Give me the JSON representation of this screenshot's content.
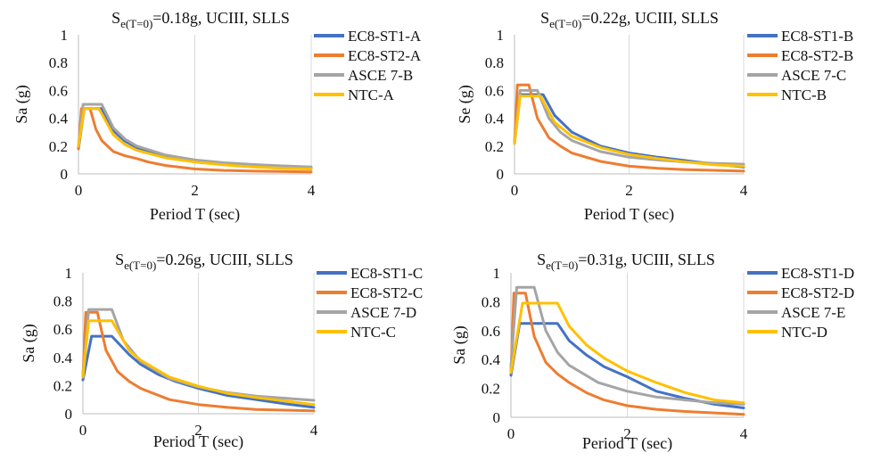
{
  "chart_data": [
    {
      "type": "line",
      "title": {
        "prefix": "S",
        "subscript": "e(T=0)",
        "rest": "=0.18g, UCIII, SLLS"
      },
      "xlabel": "Period T (sec)",
      "ylabel": "Sa (g)",
      "xlim": [
        0,
        4
      ],
      "ylim": [
        0,
        1
      ],
      "xticks": [
        "0",
        "2",
        "4"
      ],
      "yticks": [
        "0",
        "0.2",
        "0.4",
        "0.6",
        "0.8",
        "1"
      ],
      "grid": "vertical",
      "legend_position": "right",
      "series": [
        {
          "name": "EC8-ST1-A",
          "color": "#4472C4",
          "points": [
            [
              0,
              0.18
            ],
            [
              0.1,
              0.47
            ],
            [
              0.2,
              0.47
            ],
            [
              0.3,
              0.47
            ],
            [
              0.4,
              0.47
            ],
            [
              0.6,
              0.31
            ],
            [
              0.8,
              0.235
            ],
            [
              1.0,
              0.19
            ],
            [
              1.2,
              0.16
            ],
            [
              1.5,
              0.125
            ],
            [
              2.0,
              0.095
            ],
            [
              2.5,
              0.07
            ],
            [
              3.0,
              0.055
            ],
            [
              3.5,
              0.045
            ],
            [
              4.0,
              0.04
            ]
          ]
        },
        {
          "name": "EC8-ST2-A",
          "color": "#ED7D31",
          "points": [
            [
              0,
              0.18
            ],
            [
              0.05,
              0.47
            ],
            [
              0.2,
              0.47
            ],
            [
              0.3,
              0.32
            ],
            [
              0.4,
              0.24
            ],
            [
              0.6,
              0.16
            ],
            [
              0.8,
              0.13
            ],
            [
              1.0,
              0.11
            ],
            [
              1.2,
              0.085
            ],
            [
              1.5,
              0.06
            ],
            [
              2.0,
              0.035
            ],
            [
              2.5,
              0.025
            ],
            [
              3.0,
              0.02
            ],
            [
              4.0,
              0.015
            ]
          ]
        },
        {
          "name": "ASCE 7-B",
          "color": "#A5A5A5",
          "points": [
            [
              0,
              0.2
            ],
            [
              0.08,
              0.5
            ],
            [
              0.4,
              0.5
            ],
            [
              0.6,
              0.33
            ],
            [
              0.8,
              0.25
            ],
            [
              1.0,
              0.2
            ],
            [
              1.5,
              0.135
            ],
            [
              2.0,
              0.1
            ],
            [
              2.5,
              0.08
            ],
            [
              3.0,
              0.067
            ],
            [
              3.5,
              0.058
            ],
            [
              4.0,
              0.05
            ]
          ]
        },
        {
          "name": "NTC-A",
          "color": "#FFC000",
          "points": [
            [
              0,
              0.2
            ],
            [
              0.1,
              0.47
            ],
            [
              0.35,
              0.47
            ],
            [
              0.6,
              0.28
            ],
            [
              0.8,
              0.21
            ],
            [
              1.0,
              0.17
            ],
            [
              1.5,
              0.115
            ],
            [
              2.0,
              0.085
            ],
            [
              2.5,
              0.065
            ],
            [
              3.0,
              0.05
            ],
            [
              3.5,
              0.04
            ],
            [
              4.0,
              0.035
            ]
          ]
        }
      ]
    },
    {
      "type": "line",
      "title": {
        "prefix": "S",
        "subscript": "e(T=0)",
        "rest": "=0.22g, UCIII, SLLS"
      },
      "xlabel": "Period T (sec)",
      "ylabel": "Se (g)",
      "xlim": [
        0,
        4
      ],
      "ylim": [
        0,
        1
      ],
      "xticks": [
        "0",
        "2",
        "4"
      ],
      "yticks": [
        "0",
        "0.2",
        "0.4",
        "0.6",
        "0.8",
        "1"
      ],
      "grid": "vertical",
      "legend_position": "right",
      "series": [
        {
          "name": "EC8-ST1-B",
          "color": "#4472C4",
          "points": [
            [
              0,
              0.22
            ],
            [
              0.1,
              0.57
            ],
            [
              0.5,
              0.57
            ],
            [
              0.7,
              0.42
            ],
            [
              1.0,
              0.3
            ],
            [
              1.5,
              0.2
            ],
            [
              2.0,
              0.15
            ],
            [
              2.5,
              0.12
            ],
            [
              3.0,
              0.095
            ],
            [
              3.5,
              0.07
            ],
            [
              4.0,
              0.05
            ]
          ]
        },
        {
          "name": "EC8-ST2-B",
          "color": "#ED7D31",
          "points": [
            [
              0,
              0.22
            ],
            [
              0.05,
              0.64
            ],
            [
              0.25,
              0.64
            ],
            [
              0.4,
              0.4
            ],
            [
              0.6,
              0.26
            ],
            [
              0.8,
              0.2
            ],
            [
              1.0,
              0.15
            ],
            [
              1.5,
              0.09
            ],
            [
              2.0,
              0.055
            ],
            [
              2.5,
              0.04
            ],
            [
              3.0,
              0.03
            ],
            [
              4.0,
              0.02
            ]
          ]
        },
        {
          "name": "ASCE 7-C",
          "color": "#A5A5A5",
          "points": [
            [
              0,
              0.24
            ],
            [
              0.1,
              0.6
            ],
            [
              0.4,
              0.6
            ],
            [
              0.6,
              0.4
            ],
            [
              0.8,
              0.3
            ],
            [
              1.0,
              0.24
            ],
            [
              1.5,
              0.16
            ],
            [
              2.0,
              0.12
            ],
            [
              2.5,
              0.1
            ],
            [
              3.0,
              0.085
            ],
            [
              3.5,
              0.075
            ],
            [
              4.0,
              0.07
            ]
          ]
        },
        {
          "name": "NTC-B",
          "color": "#FFC000",
          "points": [
            [
              0,
              0.22
            ],
            [
              0.1,
              0.56
            ],
            [
              0.45,
              0.56
            ],
            [
              0.7,
              0.37
            ],
            [
              1.0,
              0.27
            ],
            [
              1.5,
              0.19
            ],
            [
              2.0,
              0.14
            ],
            [
              2.5,
              0.11
            ],
            [
              3.0,
              0.085
            ],
            [
              3.5,
              0.065
            ],
            [
              4.0,
              0.055
            ]
          ]
        }
      ]
    },
    {
      "type": "line",
      "title": {
        "prefix": "S",
        "subscript": "e(T=0)",
        "rest": "=0.26g, UCIII, SLLS"
      },
      "xlabel": "Period T (sec)",
      "ylabel": "Sa (g)",
      "xlim": [
        0,
        4
      ],
      "ylim": [
        0,
        1
      ],
      "xticks": [
        "0",
        "2",
        "4"
      ],
      "yticks": [
        "0",
        "0.2",
        "0.4",
        "0.6",
        "0.8",
        "1"
      ],
      "grid": "vertical",
      "legend_position": "right",
      "series": [
        {
          "name": "EC8-ST1-C",
          "color": "#4472C4",
          "points": [
            [
              0,
              0.24
            ],
            [
              0.15,
              0.55
            ],
            [
              0.5,
              0.55
            ],
            [
              0.8,
              0.42
            ],
            [
              1.0,
              0.35
            ],
            [
              1.3,
              0.28
            ],
            [
              1.6,
              0.23
            ],
            [
              2.0,
              0.18
            ],
            [
              2.5,
              0.13
            ],
            [
              3.0,
              0.1
            ],
            [
              3.5,
              0.07
            ],
            [
              4.0,
              0.045
            ]
          ]
        },
        {
          "name": "EC8-ST2-C",
          "color": "#ED7D31",
          "points": [
            [
              0,
              0.26
            ],
            [
              0.05,
              0.72
            ],
            [
              0.25,
              0.72
            ],
            [
              0.4,
              0.45
            ],
            [
              0.6,
              0.3
            ],
            [
              0.8,
              0.23
            ],
            [
              1.0,
              0.18
            ],
            [
              1.5,
              0.1
            ],
            [
              2.0,
              0.065
            ],
            [
              2.5,
              0.045
            ],
            [
              3.0,
              0.03
            ],
            [
              4.0,
              0.02
            ]
          ]
        },
        {
          "name": "ASCE 7-D",
          "color": "#A5A5A5",
          "points": [
            [
              0,
              0.28
            ],
            [
              0.1,
              0.74
            ],
            [
              0.5,
              0.74
            ],
            [
              0.7,
              0.52
            ],
            [
              1.0,
              0.37
            ],
            [
              1.5,
              0.25
            ],
            [
              2.0,
              0.19
            ],
            [
              2.5,
              0.15
            ],
            [
              3.0,
              0.125
            ],
            [
              3.5,
              0.11
            ],
            [
              4.0,
              0.095
            ]
          ]
        },
        {
          "name": "NTC-C",
          "color": "#FFC000",
          "points": [
            [
              0,
              0.26
            ],
            [
              0.1,
              0.66
            ],
            [
              0.5,
              0.66
            ],
            [
              0.8,
              0.45
            ],
            [
              1.0,
              0.38
            ],
            [
              1.5,
              0.26
            ],
            [
              2.0,
              0.195
            ],
            [
              2.5,
              0.145
            ],
            [
              3.0,
              0.115
            ],
            [
              3.5,
              0.09
            ],
            [
              4.0,
              0.065
            ]
          ]
        }
      ]
    },
    {
      "type": "line",
      "title": {
        "prefix": "S",
        "subscript": "e(T=0)",
        "rest": "=0.31g, UCIII, SLLS"
      },
      "xlabel": "Period T (sec)",
      "ylabel": "Sa (g)",
      "xlim": [
        0,
        4
      ],
      "ylim": [
        0,
        1
      ],
      "xticks": [
        "0",
        "2",
        "4"
      ],
      "yticks": [
        "0",
        "0.2",
        "0.4",
        "0.6",
        "0.8",
        "1"
      ],
      "grid": "vertical",
      "legend_position": "right",
      "series": [
        {
          "name": "EC8-ST1-D",
          "color": "#4472C4",
          "points": [
            [
              0,
              0.29
            ],
            [
              0.15,
              0.65
            ],
            [
              0.8,
              0.65
            ],
            [
              1.0,
              0.53
            ],
            [
              1.3,
              0.43
            ],
            [
              1.6,
              0.35
            ],
            [
              2.0,
              0.28
            ],
            [
              2.5,
              0.18
            ],
            [
              3.0,
              0.13
            ],
            [
              3.5,
              0.09
            ],
            [
              4.0,
              0.065
            ]
          ]
        },
        {
          "name": "EC8-ST2-D",
          "color": "#ED7D31",
          "points": [
            [
              0,
              0.31
            ],
            [
              0.05,
              0.86
            ],
            [
              0.25,
              0.86
            ],
            [
              0.4,
              0.56
            ],
            [
              0.6,
              0.38
            ],
            [
              0.8,
              0.3
            ],
            [
              1.0,
              0.24
            ],
            [
              1.3,
              0.17
            ],
            [
              1.6,
              0.12
            ],
            [
              2.0,
              0.08
            ],
            [
              2.5,
              0.055
            ],
            [
              3.0,
              0.04
            ],
            [
              3.5,
              0.03
            ],
            [
              4.0,
              0.02
            ]
          ]
        },
        {
          "name": "ASCE 7-E",
          "color": "#A5A5A5",
          "points": [
            [
              0,
              0.35
            ],
            [
              0.1,
              0.9
            ],
            [
              0.4,
              0.9
            ],
            [
              0.6,
              0.6
            ],
            [
              0.8,
              0.45
            ],
            [
              1.0,
              0.36
            ],
            [
              1.5,
              0.24
            ],
            [
              2.0,
              0.18
            ],
            [
              2.5,
              0.14
            ],
            [
              3.0,
              0.12
            ],
            [
              3.5,
              0.1
            ],
            [
              4.0,
              0.09
            ]
          ]
        },
        {
          "name": "NTC-D",
          "color": "#FFC000",
          "points": [
            [
              0,
              0.31
            ],
            [
              0.2,
              0.79
            ],
            [
              0.8,
              0.79
            ],
            [
              1.0,
              0.63
            ],
            [
              1.3,
              0.5
            ],
            [
              1.6,
              0.41
            ],
            [
              2.0,
              0.32
            ],
            [
              2.5,
              0.24
            ],
            [
              3.0,
              0.17
            ],
            [
              3.5,
              0.12
            ],
            [
              4.0,
              0.1
            ]
          ]
        }
      ]
    }
  ]
}
